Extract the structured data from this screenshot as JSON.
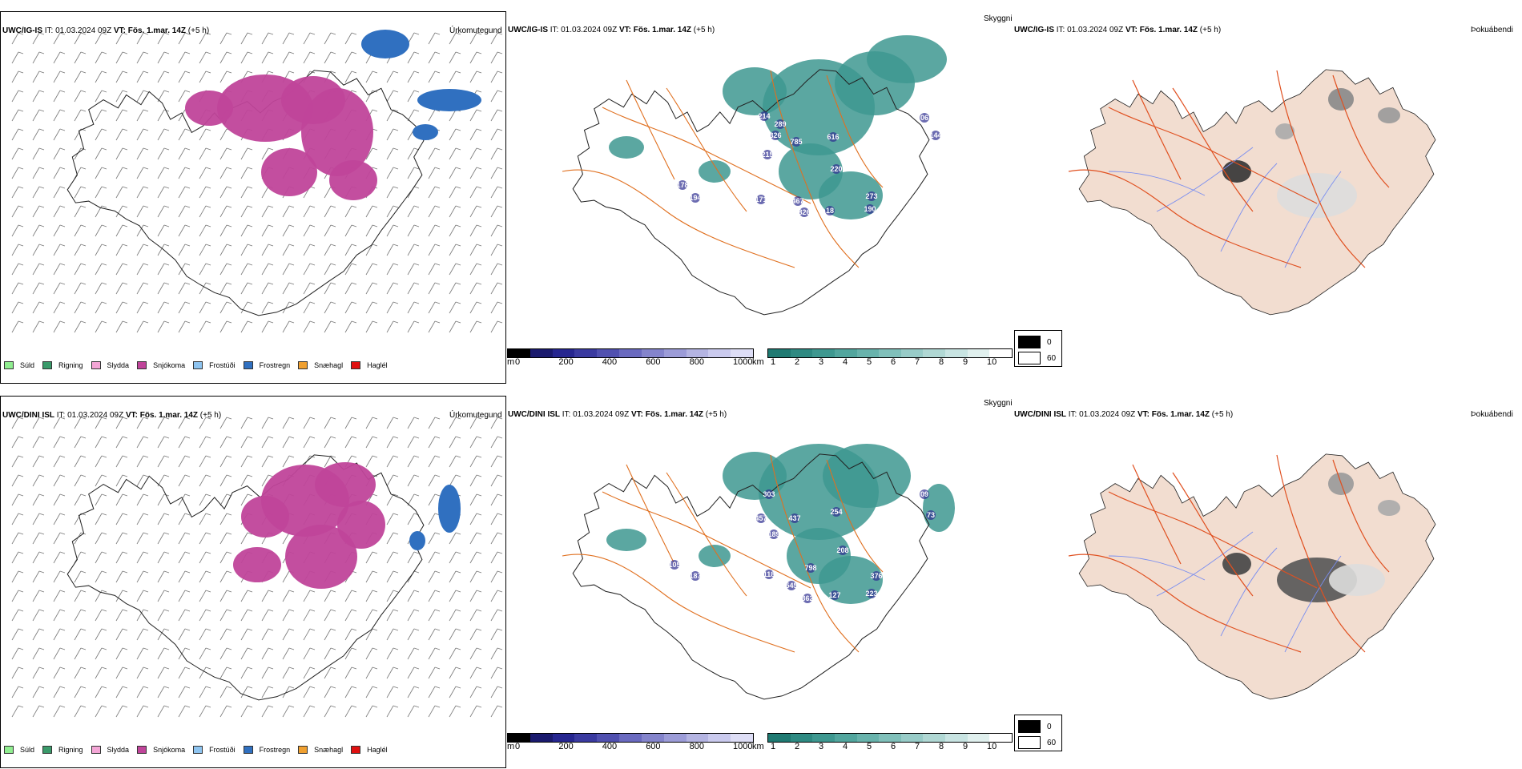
{
  "rows": [
    {
      "model": "UWC/IG-IS",
      "it_label": "IT:",
      "it_value": "01.03.2024 09Z",
      "vt_label": "VT:",
      "vt_value": "Fös. 1.mar. 14Z",
      "lead": "(+5 h)",
      "cloud_labels": [
        "214",
        "289",
        "326",
        "785",
        "616",
        "215",
        "220",
        "178",
        "194",
        "171",
        "467",
        "826",
        "18",
        "273",
        "190",
        "06",
        "144"
      ]
    },
    {
      "model": "UWC/DINI ISL",
      "it_label": "IT:",
      "it_value": "01.03.2024 09Z",
      "vt_label": "VT:",
      "vt_value": "Fös. 1.mar. 14Z",
      "lead": "(+5 h)",
      "cloud_labels": [
        "303",
        "457",
        "437",
        "254",
        "189",
        "208",
        "105",
        "187",
        "118",
        "798",
        "545",
        "362",
        "127",
        "376",
        "223",
        "09",
        "73"
      ]
    }
  ],
  "panel_titles": {
    "precip": "Úrkomutegund",
    "cloud": "Skyggni",
    "fog": "Þokuábendi"
  },
  "precip_legend": [
    {
      "label": "Súld",
      "color": "#90ee90"
    },
    {
      "label": "Rigning",
      "color": "#3a9a6a"
    },
    {
      "label": "Slydda",
      "color": "#f4a6d6"
    },
    {
      "label": "Snjókoma",
      "color": "#c0449a"
    },
    {
      "label": "Frostúði",
      "color": "#8ec4f0"
    },
    {
      "label": "Frostregn",
      "color": "#3070c0"
    },
    {
      "label": "Snæhagl",
      "color": "#f0a030"
    },
    {
      "label": "Haglél",
      "color": "#e01010"
    }
  ],
  "elevation_bar": {
    "unit": "m",
    "ticks": [
      "0",
      "200",
      "400",
      "600",
      "800",
      "1000"
    ],
    "colors": [
      "#000000",
      "#1a1a6e",
      "#262690",
      "#3a3aa0",
      "#5050b0",
      "#6a6ac0",
      "#8484cc",
      "#9c9cd8",
      "#b4b4e2",
      "#cacaee",
      "#dedef6"
    ]
  },
  "visibility_bar": {
    "unit": "km",
    "ticks": [
      "1",
      "2",
      "3",
      "4",
      "5",
      "6",
      "7",
      "8",
      "9",
      "10"
    ],
    "colors": [
      "#1f7a72",
      "#2e8a82",
      "#3e9890",
      "#52a69e",
      "#68b3ac",
      "#80c0ba",
      "#98ccc8",
      "#b0d8d4",
      "#c8e4e2",
      "#e0f0ee",
      "#ffffff"
    ]
  },
  "fog_legend": [
    {
      "label": "0",
      "color": "#000000"
    },
    {
      "label": "60",
      "color": "#ffffff"
    }
  ],
  "colors": {
    "snow": "#c0449a",
    "freezing": "#3070c0",
    "cloud": "#3e9890",
    "roads": "#e07020",
    "land_fog": "#f2ddd0"
  }
}
